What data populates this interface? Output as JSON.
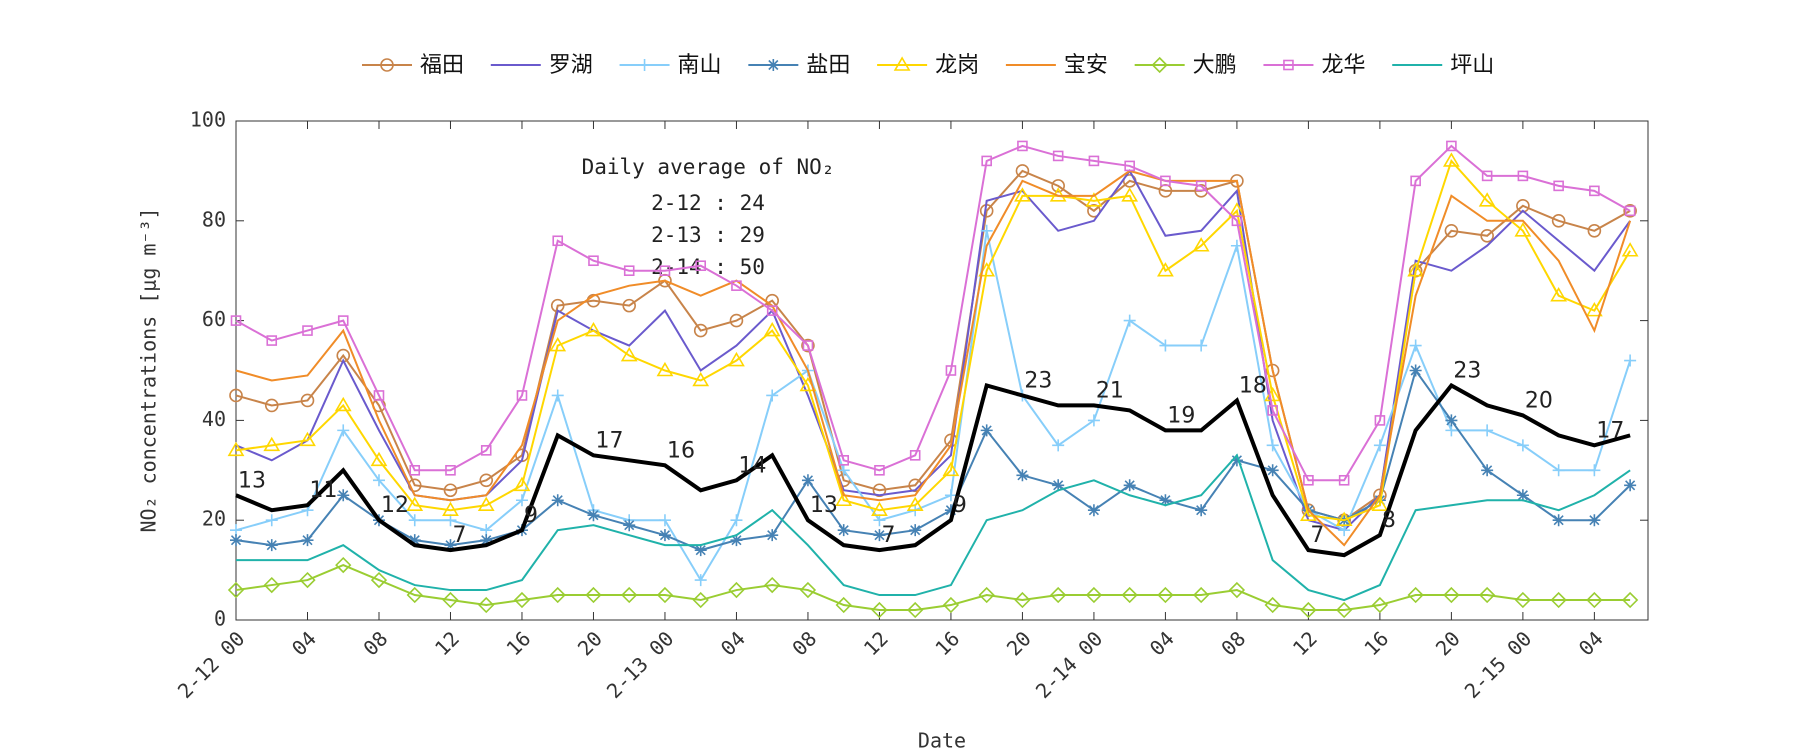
{
  "chart_data": {
    "type": "line",
    "ylabel": "NO₂ concentrations [μg m⁻³]",
    "xlabel": "Date",
    "x": [
      0,
      2,
      4,
      6,
      8,
      10,
      12,
      14,
      16,
      18,
      20,
      22,
      24,
      26,
      28,
      30,
      32,
      34,
      36,
      38,
      40,
      42,
      44,
      46,
      48,
      50,
      52,
      54,
      56,
      58,
      60,
      62,
      64,
      66,
      68,
      70,
      72,
      74,
      76,
      78
    ],
    "xlim": [
      0,
      79
    ],
    "xticks": [
      {
        "value": 0,
        "label": "2-12 00"
      },
      {
        "value": 4,
        "label": "04"
      },
      {
        "value": 8,
        "label": "08"
      },
      {
        "value": 12,
        "label": "12"
      },
      {
        "value": 16,
        "label": "16"
      },
      {
        "value": 20,
        "label": "20"
      },
      {
        "value": 24,
        "label": "2-13 00"
      },
      {
        "value": 28,
        "label": "04"
      },
      {
        "value": 32,
        "label": "08"
      },
      {
        "value": 36,
        "label": "12"
      },
      {
        "value": 40,
        "label": "16"
      },
      {
        "value": 44,
        "label": "20"
      },
      {
        "value": 48,
        "label": "2-14 00"
      },
      {
        "value": 52,
        "label": "04"
      },
      {
        "value": 56,
        "label": "08"
      },
      {
        "value": 60,
        "label": "12"
      },
      {
        "value": 64,
        "label": "16"
      },
      {
        "value": 68,
        "label": "20"
      },
      {
        "value": 72,
        "label": "2-15 00"
      },
      {
        "value": 76,
        "label": "04"
      }
    ],
    "ylim": [
      0,
      100
    ],
    "yticks": [
      0,
      20,
      40,
      60,
      80,
      100
    ],
    "grid": false,
    "legend": "top",
    "series": [
      {
        "name": "福田",
        "color": "#c8844a",
        "marker": "circle",
        "values": [
          45,
          43,
          44,
          53,
          43,
          27,
          26,
          28,
          33,
          63,
          64,
          63,
          68,
          58,
          60,
          64,
          55,
          28,
          26,
          27,
          36,
          82,
          90,
          87,
          82,
          88,
          86,
          86,
          88,
          50,
          22,
          20,
          25,
          70,
          78,
          77,
          83,
          80,
          78,
          82
        ]
      },
      {
        "name": "罗湖",
        "color": "#6a5acd",
        "marker": "none",
        "values": [
          35,
          32,
          36,
          52,
          38,
          25,
          24,
          25,
          32,
          62,
          58,
          55,
          62,
          50,
          55,
          62,
          45,
          26,
          25,
          26,
          33,
          84,
          86,
          78,
          80,
          90,
          77,
          78,
          86,
          40,
          20,
          18,
          25,
          72,
          70,
          75,
          82,
          76,
          70,
          80
        ]
      },
      {
        "name": "南山",
        "color": "#87cefa",
        "marker": "plus",
        "values": [
          18,
          20,
          22,
          38,
          28,
          20,
          20,
          18,
          24,
          45,
          22,
          20,
          20,
          8,
          20,
          45,
          50,
          30,
          20,
          22,
          25,
          78,
          45,
          35,
          40,
          60,
          55,
          55,
          75,
          35,
          22,
          18,
          35,
          55,
          38,
          38,
          35,
          30,
          30,
          52
        ]
      },
      {
        "name": "盐田",
        "color": "#4682b4",
        "marker": "star",
        "values": [
          16,
          15,
          16,
          25,
          20,
          16,
          15,
          16,
          18,
          24,
          21,
          19,
          17,
          14,
          16,
          17,
          28,
          18,
          17,
          18,
          22,
          38,
          29,
          27,
          22,
          27,
          24,
          22,
          32,
          30,
          22,
          20,
          24,
          50,
          40,
          30,
          25,
          20,
          20,
          27
        ]
      },
      {
        "name": "龙岗",
        "color": "#ffd700",
        "marker": "triangle",
        "values": [
          34,
          35,
          36,
          43,
          32,
          23,
          22,
          23,
          27,
          55,
          58,
          53,
          50,
          48,
          52,
          58,
          47,
          24,
          22,
          23,
          30,
          70,
          85,
          85,
          84,
          85,
          70,
          75,
          82,
          45,
          21,
          20,
          23,
          70,
          92,
          84,
          78,
          65,
          62,
          74
        ]
      },
      {
        "name": "宝安",
        "color": "#f08c28",
        "marker": "none",
        "values": [
          50,
          48,
          49,
          58,
          40,
          25,
          24,
          25,
          35,
          60,
          65,
          67,
          68,
          65,
          68,
          63,
          50,
          25,
          24,
          25,
          35,
          75,
          88,
          85,
          85,
          90,
          88,
          88,
          88,
          50,
          22,
          15,
          25,
          65,
          85,
          80,
          80,
          72,
          58,
          80
        ]
      },
      {
        "name": "大鹏",
        "color": "#9acd32",
        "marker": "diamond",
        "values": [
          6,
          7,
          8,
          11,
          8,
          5,
          4,
          3,
          4,
          5,
          5,
          5,
          5,
          4,
          6,
          7,
          6,
          3,
          2,
          2,
          3,
          5,
          4,
          5,
          5,
          5,
          5,
          5,
          6,
          3,
          2,
          2,
          3,
          5,
          5,
          5,
          4,
          4,
          4,
          4
        ]
      },
      {
        "name": "龙华",
        "color": "#da70d6",
        "marker": "square",
        "values": [
          60,
          56,
          58,
          60,
          45,
          30,
          30,
          34,
          45,
          76,
          72,
          70,
          70,
          71,
          67,
          62,
          55,
          32,
          30,
          33,
          50,
          92,
          95,
          93,
          92,
          91,
          88,
          87,
          80,
          42,
          28,
          28,
          40,
          88,
          95,
          89,
          89,
          87,
          86,
          82
        ]
      },
      {
        "name": "坪山",
        "color": "#20b2aa",
        "marker": "none",
        "values": [
          12,
          12,
          12,
          15,
          10,
          7,
          6,
          6,
          8,
          18,
          19,
          17,
          15,
          15,
          17,
          22,
          15,
          7,
          5,
          5,
          7,
          20,
          22,
          26,
          28,
          25,
          23,
          25,
          33,
          12,
          6,
          4,
          7,
          22,
          23,
          24,
          24,
          22,
          25,
          30
        ]
      }
    ],
    "mean": {
      "color": "#000000",
      "values": [
        25,
        22,
        23,
        30,
        20,
        15,
        14,
        15,
        18,
        37,
        33,
        32,
        31,
        26,
        28,
        33,
        20,
        15,
        14,
        15,
        20,
        47,
        45,
        43,
        43,
        42,
        38,
        38,
        44,
        25,
        14,
        13,
        17,
        38,
        47,
        43,
        41,
        37,
        35,
        37
      ]
    },
    "point_labels": {
      "x": [
        0,
        4,
        8,
        12,
        16,
        20,
        24,
        28,
        32,
        36,
        40,
        44,
        48,
        52,
        56,
        60,
        64,
        68,
        72,
        76
      ],
      "values": [
        13,
        11,
        12,
        7,
        9,
        17,
        16,
        14,
        13,
        7,
        9,
        23,
        21,
        19,
        18,
        7,
        8,
        23,
        20,
        17
      ]
    },
    "annotation": {
      "title": "Daily average of NO₂",
      "lines": [
        "2-12 : 24",
        "2-13 : 29",
        "2-14 : 50"
      ]
    }
  }
}
